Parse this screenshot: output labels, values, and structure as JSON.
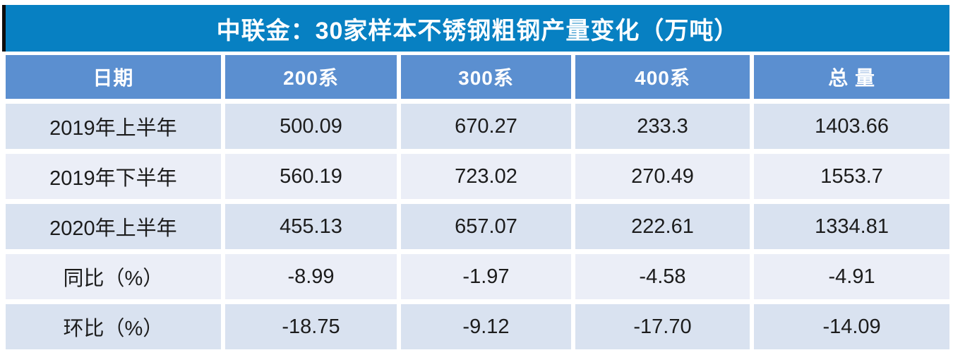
{
  "title": "中联金：30家样本不锈钢粗钢产量变化（万吨）",
  "table": {
    "headers": [
      "日期",
      "200系",
      "300系",
      "400系",
      "总 量"
    ],
    "rows": [
      {
        "label": "2019年上半年",
        "values": [
          "500.09",
          "670.27",
          "233.3",
          "1403.66"
        ]
      },
      {
        "label": "2019年下半年",
        "values": [
          "560.19",
          "723.02",
          "270.49",
          "1553.7"
        ]
      },
      {
        "label": "2020年上半年",
        "values": [
          "455.13",
          "657.07",
          "222.61",
          "1334.81"
        ]
      },
      {
        "label": "同比（%）",
        "values": [
          "-8.99",
          "-1.97",
          "-4.58",
          "-4.91"
        ]
      },
      {
        "label": "环比（%）",
        "values": [
          "-18.75",
          "-9.12",
          "-17.70",
          "-14.09"
        ]
      }
    ]
  },
  "chart_data": {
    "type": "table",
    "title": "中联金：30家样本不锈钢粗钢产量变化（万吨）",
    "columns": [
      "日期",
      "200系",
      "300系",
      "400系",
      "总量"
    ],
    "rows": [
      [
        "2019年上半年",
        500.09,
        670.27,
        233.3,
        1403.66
      ],
      [
        "2019年下半年",
        560.19,
        723.02,
        270.49,
        1553.7
      ],
      [
        "2020年上半年",
        455.13,
        657.07,
        222.61,
        1334.81
      ],
      [
        "同比（%）",
        -8.99,
        -1.97,
        -4.58,
        -4.91
      ],
      [
        "环比（%）",
        -18.75,
        -9.12,
        -17.7,
        -14.09
      ]
    ],
    "unit": "万吨",
    "layout": "banded-rows, centered text, blue title bar, blue header row"
  },
  "colors": {
    "title_bg": "#0780c2",
    "header_bg": "#5b8fd0",
    "band_dark": "#d9e2f0",
    "band_light": "#ebeef7",
    "title_text": "#ffffff",
    "body_text": "#1c1c1c",
    "accent_bar": "#0d0d0d"
  }
}
